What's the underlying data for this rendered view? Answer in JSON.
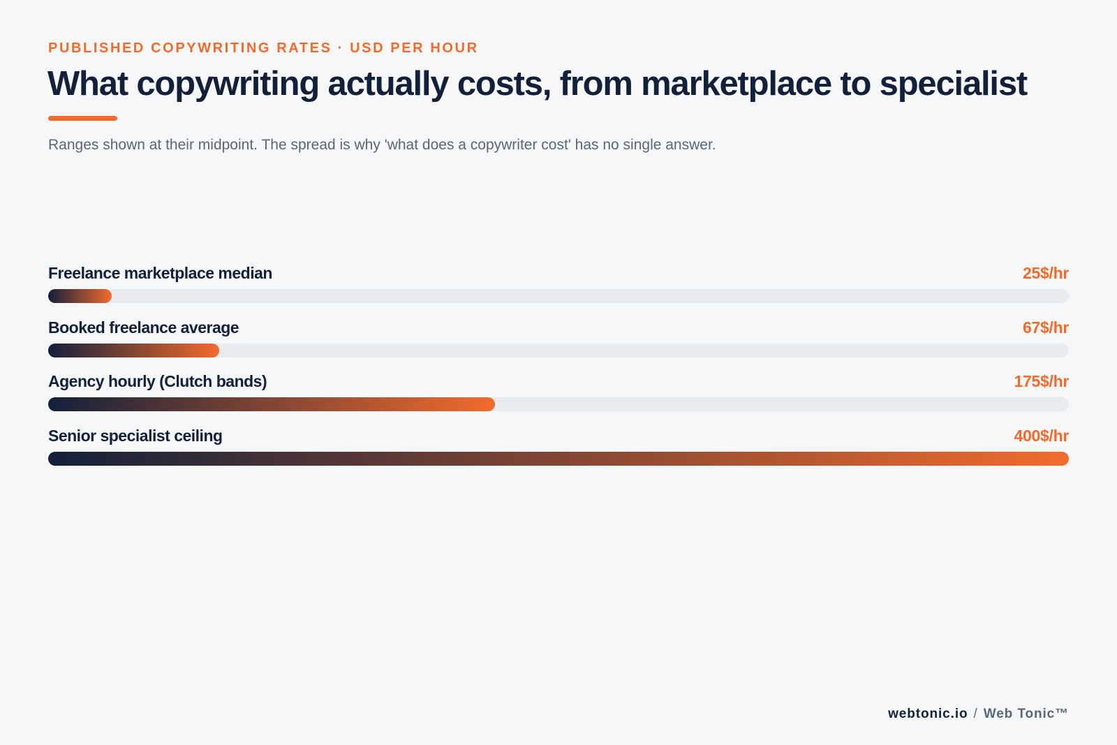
{
  "header": {
    "eyebrow": "PUBLISHED COPYWRITING RATES · USD PER HOUR",
    "title": "What copywriting actually costs, from marketplace to specialist",
    "subtitle": "Ranges shown at their midpoint. The spread is why 'what does a copywriter cost' has no single answer."
  },
  "colors": {
    "accent": "#f26b2d",
    "navy": "#13203a",
    "track": "#e8ebef",
    "muted": "#5b6578",
    "background": "#f6f7f9"
  },
  "chart_data": {
    "type": "bar",
    "orientation": "horizontal",
    "categories": [
      "Freelance marketplace median",
      "Booked freelance average",
      "Agency hourly (Clutch bands)",
      "Senior specialist ceiling"
    ],
    "values": [
      25,
      67,
      175,
      400
    ],
    "value_labels": [
      "25$/hr",
      "67$/hr",
      "175$/hr",
      "400$/hr"
    ],
    "xlim": [
      0,
      400
    ],
    "grid": false,
    "legend": "none"
  },
  "footer": {
    "domain": "webtonic.io",
    "separator": "/",
    "brand": "Web Tonic™"
  }
}
